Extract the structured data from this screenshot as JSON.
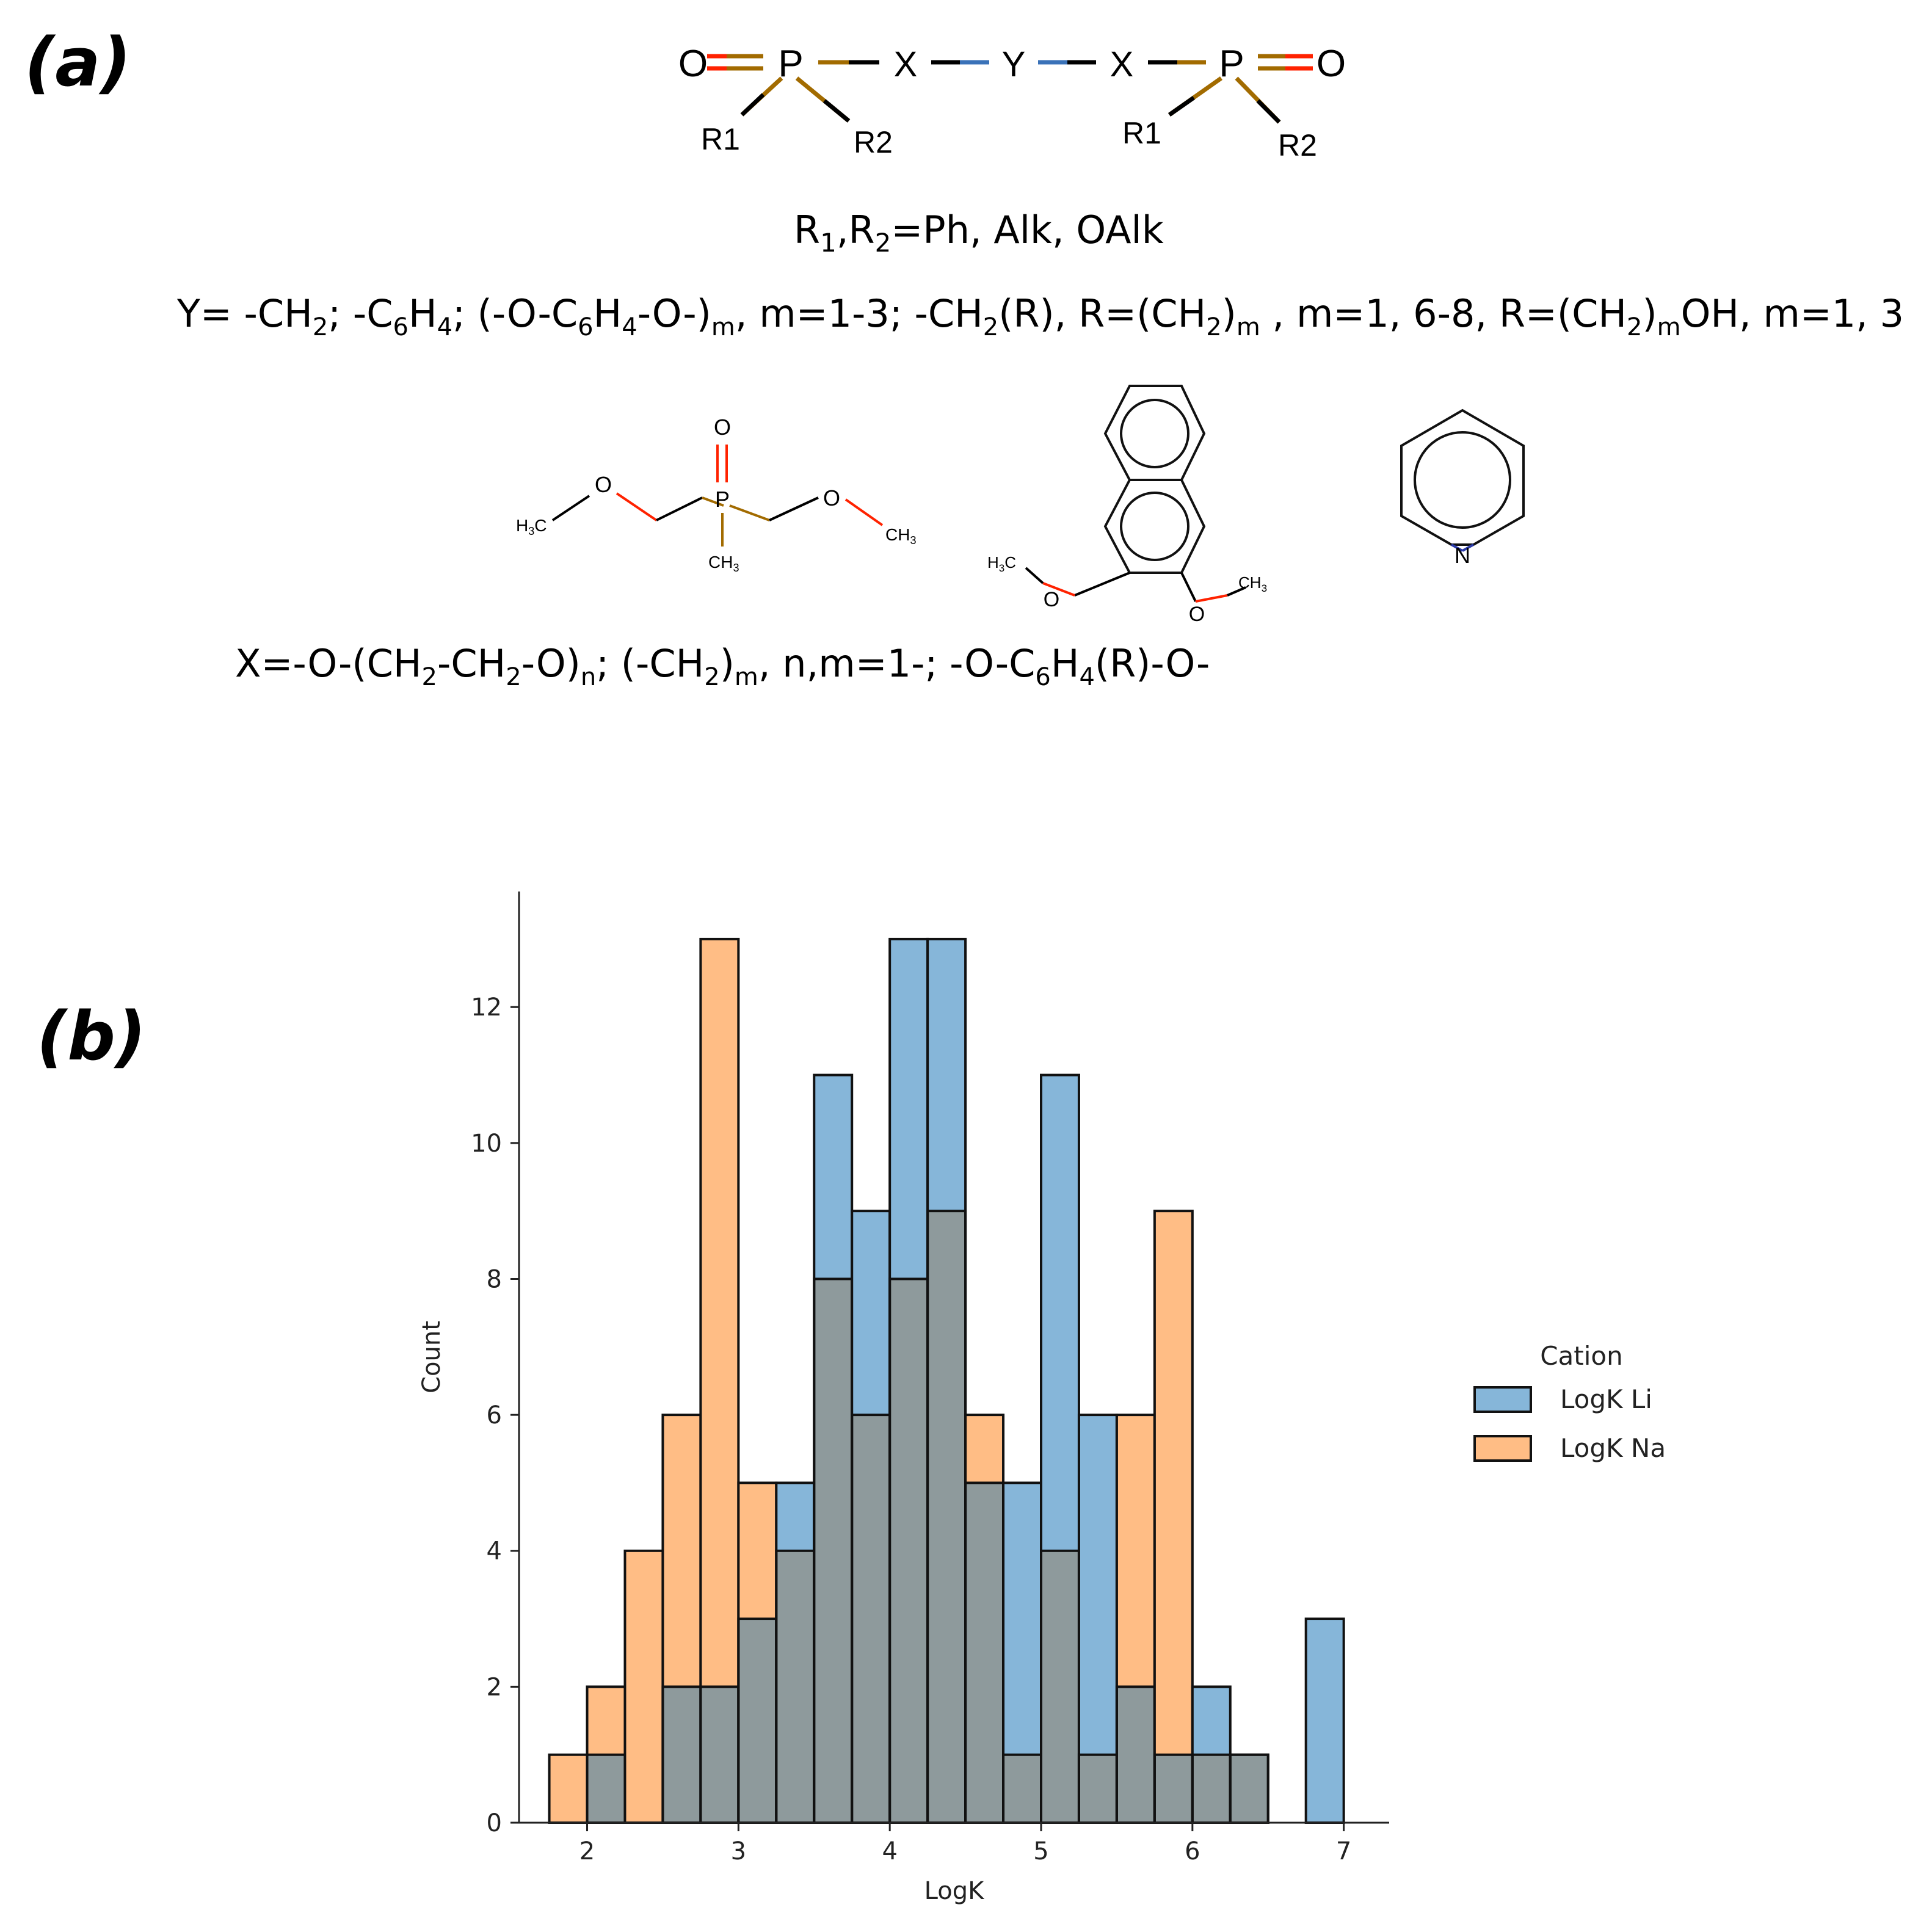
{
  "labels": {
    "panel_a": "(a)",
    "panel_b": "(b)"
  },
  "colors": {
    "li": "#1f77b4",
    "na": "#ff7f0e",
    "overlap": "#8e9a9c",
    "oxygen": "#ff2200",
    "phosphorus": "#a26b00",
    "bridge": "#3a72b8",
    "nitrogen": "#2a3aa8"
  },
  "scheme": {
    "atom_o": "O",
    "atom_p": "P",
    "atom_x": "X",
    "atom_y": "Y",
    "sub_r1": "R1",
    "sub_r2": "R2"
  },
  "definitions": {
    "r_line": [
      "R",
      "1",
      ",R",
      "2",
      "=Ph, Alk, OAlk"
    ],
    "y_line": [
      "Y= -CH",
      "2",
      "; -C",
      "6",
      "H",
      "4",
      "; (-O-C",
      "6",
      "H",
      "4",
      "-O-)",
      "m",
      ", m=1-3; -CH",
      "2",
      "(R), R=(CH",
      "2",
      ")",
      "m",
      " , m=1, 6-8, R=(CH",
      "2",
      ")",
      "m",
      "OH, m=1, 3"
    ],
    "x_line": [
      "X=-O-(CH",
      "2",
      "-CH",
      "2",
      "-O)",
      "n",
      "; (-CH",
      "2",
      ")",
      "m",
      ", n,m=1-; -O-C",
      "6",
      "H",
      "4",
      "(R)-O-"
    ]
  },
  "molecules": {
    "m1": {
      "o": "O",
      "h3c_main": "H",
      "h3c_sub": "3",
      "h3c_tail": "C",
      "ch3_main": "CH",
      "ch3_sub": "3",
      "p": "P"
    },
    "m2": {
      "o": "O",
      "h3c_main": "H",
      "h3c_sub": "3",
      "h3c_tail": "C",
      "ch3_main": "CH",
      "ch3_sub": "3"
    },
    "m3": {
      "n": "N"
    }
  },
  "chart_data": {
    "type": "histogram",
    "xlabel": "LogK",
    "ylabel": "Count",
    "xlim": [
      1.55,
      7.3
    ],
    "ylim": [
      0,
      13.7
    ],
    "xticks": [
      2,
      3,
      4,
      5,
      6,
      7
    ],
    "yticks": [
      0,
      2,
      4,
      6,
      8,
      10,
      12
    ],
    "bin_edges": [
      1.75,
      2.0,
      2.25,
      2.5,
      2.75,
      3.0,
      3.25,
      3.5,
      3.75,
      4.0,
      4.25,
      4.5,
      4.75,
      5.0,
      5.25,
      5.5,
      5.75,
      6.0,
      6.25,
      6.5,
      6.75,
      7.0
    ],
    "legend_title": "Cation",
    "series": [
      {
        "name": "LogK Li",
        "counts": [
          0,
          1,
          0,
          2,
          2,
          3,
          5,
          11,
          9,
          13,
          13,
          5,
          5,
          11,
          6,
          2,
          1,
          2,
          1,
          0,
          3
        ]
      },
      {
        "name": "LogK Na",
        "counts": [
          1,
          2,
          4,
          6,
          13,
          5,
          4,
          8,
          6,
          8,
          9,
          6,
          1,
          4,
          1,
          6,
          9,
          1,
          1,
          0,
          0
        ]
      }
    ]
  }
}
